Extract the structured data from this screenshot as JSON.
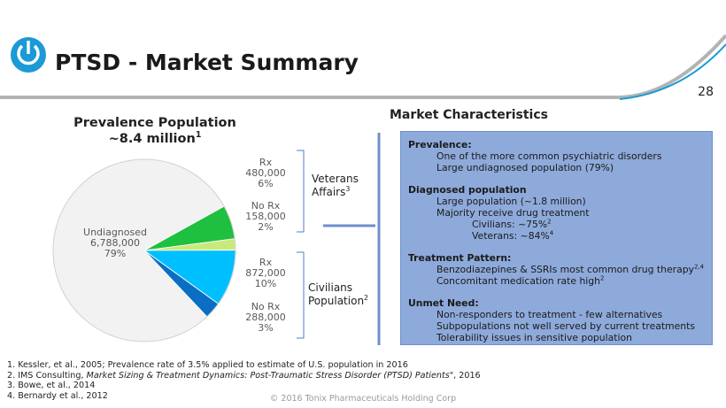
{
  "header": {
    "title": "PTSD - Market Summary",
    "page_number": "28"
  },
  "chart_data": {
    "type": "pie",
    "title": "Prevalence Population",
    "subtitle": "~8.4 million",
    "subtitle_note": "1",
    "categories": [
      "Rx",
      "No Rx",
      "Rx",
      "No Rx",
      "Undiagnosed"
    ],
    "values": [
      6,
      2,
      10,
      3,
      79
    ],
    "value_labels": [
      "6%",
      "2%",
      "10%",
      "3%",
      "79%"
    ],
    "counts": [
      480000,
      158000,
      872000,
      288000,
      6788000
    ],
    "count_labels": [
      "480,000",
      "158,000",
      "872,000",
      "288,000",
      "6,788,000"
    ],
    "colors": [
      "#1fbf3f",
      "#c9ea7a",
      "#00bfff",
      "#0a6fc4",
      "#f2f2f2"
    ],
    "annotations": [
      {
        "text": "Veterans Affairs",
        "note": "3"
      },
      {
        "text": "Civilians Population",
        "note": "2"
      }
    ]
  },
  "market": {
    "title": "Market Characteristics",
    "sections": [
      {
        "heading": "Prevalence:",
        "items": [
          {
            "text": "One of the more common psychiatric disorders"
          },
          {
            "text": "Large undiagnosed  population (79%)"
          }
        ]
      },
      {
        "heading": "Diagnosed population",
        "items": [
          {
            "text": "Large population (~1.8 million)"
          },
          {
            "text": "Majority receive drug treatment",
            "subitems": [
              {
                "text": "Civilians: ~75%",
                "note": "2"
              },
              {
                "text": "Veterans: ~84%",
                "note": "4"
              }
            ]
          }
        ]
      },
      {
        "heading": "Treatment Pattern:",
        "items": [
          {
            "text": "Benzodiazepines & SSRIs most common drug therapy",
            "note": "2,4"
          },
          {
            "text": "Concomitant medication rate high",
            "note": "2"
          }
        ]
      },
      {
        "heading": "Unmet Need:",
        "items": [
          {
            "text": "Non-responders to treatment  - few alternatives"
          },
          {
            "text": "Subpopulations not well served by current treatments"
          },
          {
            "text": "Tolerability issues in sensitive population"
          }
        ]
      }
    ]
  },
  "footnotes": [
    {
      "text": "1. Kessler, et al., 2005; Prevalence rate of 3.5% applied to estimate of U.S. population in 2016"
    },
    {
      "text": "2. IMS Consulting, ",
      "italic": "Market Sizing & Treatment Dynamics: Post-Traumatic Stress Disorder (PTSD) Patients\"",
      "rest": ", 2016"
    },
    {
      "text": "3. Bowe, et al., 2014"
    },
    {
      "text": "4. Bernardy et al., 2012"
    }
  ],
  "copyright": "© 2016 Tonix Pharmaceuticals Holding Corp"
}
